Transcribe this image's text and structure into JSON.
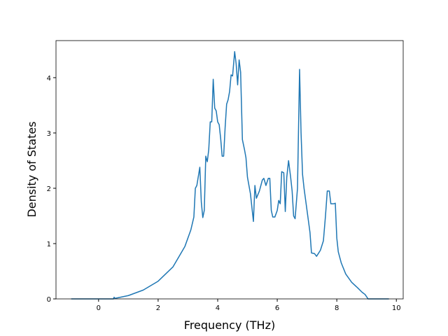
{
  "chart_data": {
    "type": "line",
    "xlabel": "Frequency (THz)",
    "ylabel": "Density of States",
    "x": [
      -0.92,
      0.5,
      0.52,
      0.55,
      1.0,
      1.5,
      2.0,
      2.5,
      2.9,
      3.1,
      3.2,
      3.25,
      3.3,
      3.4,
      3.45,
      3.5,
      3.55,
      3.6,
      3.65,
      3.7,
      3.75,
      3.8,
      3.85,
      3.9,
      3.95,
      4.0,
      4.05,
      4.1,
      4.15,
      4.2,
      4.25,
      4.3,
      4.35,
      4.4,
      4.45,
      4.5,
      4.57,
      4.62,
      4.67,
      4.72,
      4.77,
      4.83,
      4.9,
      4.95,
      5.0,
      5.1,
      5.2,
      5.25,
      5.3,
      5.4,
      5.5,
      5.55,
      5.62,
      5.7,
      5.75,
      5.8,
      5.85,
      5.92,
      6.0,
      6.05,
      6.1,
      6.15,
      6.22,
      6.27,
      6.32,
      6.38,
      6.45,
      6.5,
      6.55,
      6.6,
      6.68,
      6.75,
      6.8,
      6.85,
      6.9,
      7.0,
      7.1,
      7.15,
      7.25,
      7.32,
      7.45,
      7.55,
      7.62,
      7.68,
      7.75,
      7.8,
      7.9,
      7.95,
      8.0,
      8.05,
      8.15,
      8.3,
      8.5,
      8.7,
      8.85,
      8.95,
      9.05,
      9.75
    ],
    "values": [
      0,
      0,
      0.03,
      0.01,
      0.06,
      0.16,
      0.32,
      0.58,
      0.95,
      1.25,
      1.48,
      2.0,
      2.05,
      2.38,
      1.75,
      1.47,
      1.6,
      2.58,
      2.48,
      2.7,
      3.2,
      3.2,
      3.97,
      3.45,
      3.4,
      3.2,
      3.15,
      2.9,
      2.58,
      2.58,
      3.1,
      3.52,
      3.6,
      3.75,
      4.05,
      4.03,
      4.47,
      4.25,
      3.87,
      4.32,
      4.1,
      2.88,
      2.7,
      2.55,
      2.2,
      1.9,
      1.4,
      2.05,
      1.82,
      1.95,
      2.15,
      2.18,
      2.05,
      2.18,
      2.18,
      1.6,
      1.48,
      1.48,
      1.6,
      1.78,
      1.72,
      2.3,
      2.28,
      1.58,
      2.2,
      2.5,
      2.2,
      1.95,
      1.5,
      1.45,
      2.0,
      4.15,
      3.0,
      2.25,
      2.0,
      1.6,
      1.2,
      0.83,
      0.82,
      0.77,
      0.88,
      1.05,
      1.5,
      1.95,
      1.95,
      1.72,
      1.72,
      1.73,
      1.1,
      0.85,
      0.65,
      0.45,
      0.3,
      0.2,
      0.12,
      0.08,
      0,
      0
    ],
    "color": "#1f77b4",
    "xlim": [
      -1.43,
      10.23
    ],
    "ylim": [
      0,
      4.67
    ],
    "xticks": [
      0,
      2,
      4,
      6,
      8,
      10
    ],
    "yticks": [
      0,
      1,
      2,
      3,
      4
    ]
  }
}
